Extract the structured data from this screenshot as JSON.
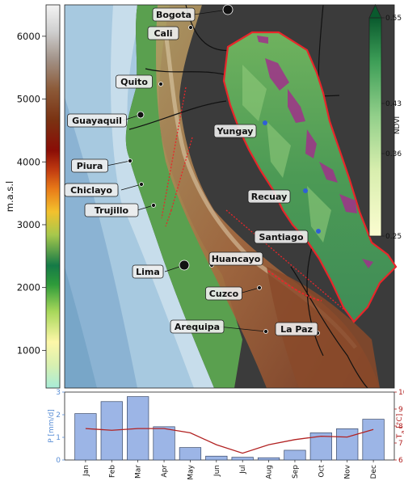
{
  "elevation_scale": {
    "label": "m.a.s.l",
    "ticks": [
      "1000",
      "2000",
      "3000",
      "4000",
      "5000",
      "6000"
    ],
    "tick_values": [
      1000,
      2000,
      3000,
      4000,
      5000,
      6000
    ],
    "range": [
      400,
      6500
    ]
  },
  "ndvi_scale": {
    "label": "NDVI",
    "ticks": [
      "0.25",
      "0.36",
      "0.43",
      "0.55"
    ],
    "tick_values": [
      0.25,
      0.36,
      0.43,
      0.55
    ]
  },
  "cities": [
    {
      "name": "Bogota",
      "size": "large"
    },
    {
      "name": "Cali",
      "size": "small"
    },
    {
      "name": "Quito",
      "size": "small"
    },
    {
      "name": "Guayaquil",
      "size": "medium"
    },
    {
      "name": "Piura",
      "size": "small"
    },
    {
      "name": "Chiclayo",
      "size": "small"
    },
    {
      "name": "Trujillo",
      "size": "small"
    },
    {
      "name": "Lima",
      "size": "large"
    },
    {
      "name": "Huancayo",
      "size": "small"
    },
    {
      "name": "Cuzco",
      "size": "small"
    },
    {
      "name": "Arequipa",
      "size": "small"
    },
    {
      "name": "La Paz",
      "size": "small"
    }
  ],
  "inset_sites": [
    "Yungay",
    "Recuay",
    "Santiago"
  ],
  "colors": {
    "ocean": "#9ec3dc",
    "deep_ocean": "#6d9cc2",
    "lowland": "#3a3a3a",
    "basin_outline": "#e8262a",
    "precip_bar": "#9cb5e6",
    "temp_line": "#b22222",
    "site_marker": "#2f5fd6"
  },
  "chart_data": {
    "type": "bar",
    "categories": [
      "Jan",
      "Feb",
      "Mar",
      "Apr",
      "May",
      "Jun",
      "Jul",
      "Aug",
      "Sep",
      "Oct",
      "Nov",
      "Dec"
    ],
    "series": [
      {
        "name": "P [mm/d]",
        "kind": "bar",
        "axis": "left",
        "values": [
          2.05,
          2.58,
          2.8,
          1.47,
          0.55,
          0.17,
          0.12,
          0.1,
          0.43,
          1.2,
          1.38,
          1.8
        ]
      },
      {
        "name": "Ta [°C]",
        "kind": "line",
        "axis": "right",
        "values": [
          7.85,
          7.75,
          7.85,
          7.85,
          7.6,
          6.9,
          6.4,
          6.9,
          7.2,
          7.4,
          7.35,
          7.8
        ]
      }
    ],
    "ylabel_left": "P [mm/d]",
    "ylabel_right_main": "T",
    "ylabel_right_sub": "a",
    "ylabel_right_unit": " [°C]",
    "ylim_left": [
      0,
      3
    ],
    "yticks_left": [
      "0",
      "1",
      "2",
      "3"
    ],
    "ylim_right": [
      6,
      10
    ],
    "yticks_right": [
      "6",
      "7",
      "8",
      "9",
      "10"
    ]
  }
}
